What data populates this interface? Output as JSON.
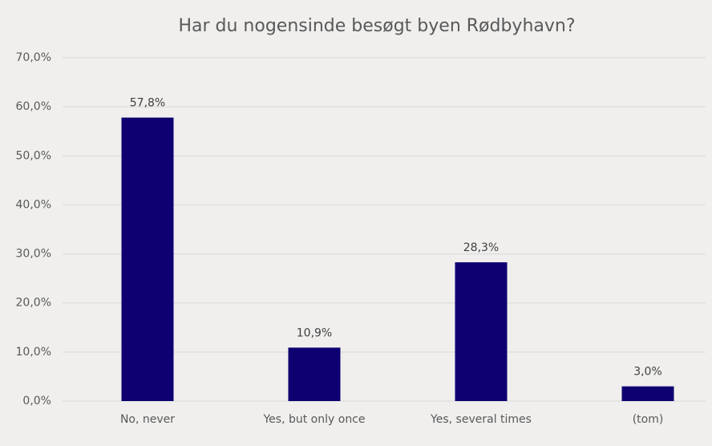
{
  "chart_data": {
    "type": "bar",
    "title": "Har du nogensinde besøgt byen Rødbyhavn?",
    "categories": [
      "No, never",
      "Yes, but only once",
      "Yes, several times",
      "(tom)"
    ],
    "values": [
      57.8,
      10.9,
      28.3,
      3.0
    ],
    "value_labels": [
      "57,8%",
      "10,9%",
      "28,3%",
      "3,0%"
    ],
    "color": "#0e0070",
    "ylim": [
      0,
      70
    ],
    "yticks": [
      {
        "value": 0,
        "label": "0,0%"
      },
      {
        "value": 10,
        "label": "10,0%"
      },
      {
        "value": 20,
        "label": "20,0%"
      },
      {
        "value": 30,
        "label": "30,0%"
      },
      {
        "value": 40,
        "label": "40,0%"
      },
      {
        "value": 50,
        "label": "50,0%"
      },
      {
        "value": 60,
        "label": "60,0%"
      },
      {
        "value": 70,
        "label": "70,0%"
      }
    ],
    "grid": true
  }
}
